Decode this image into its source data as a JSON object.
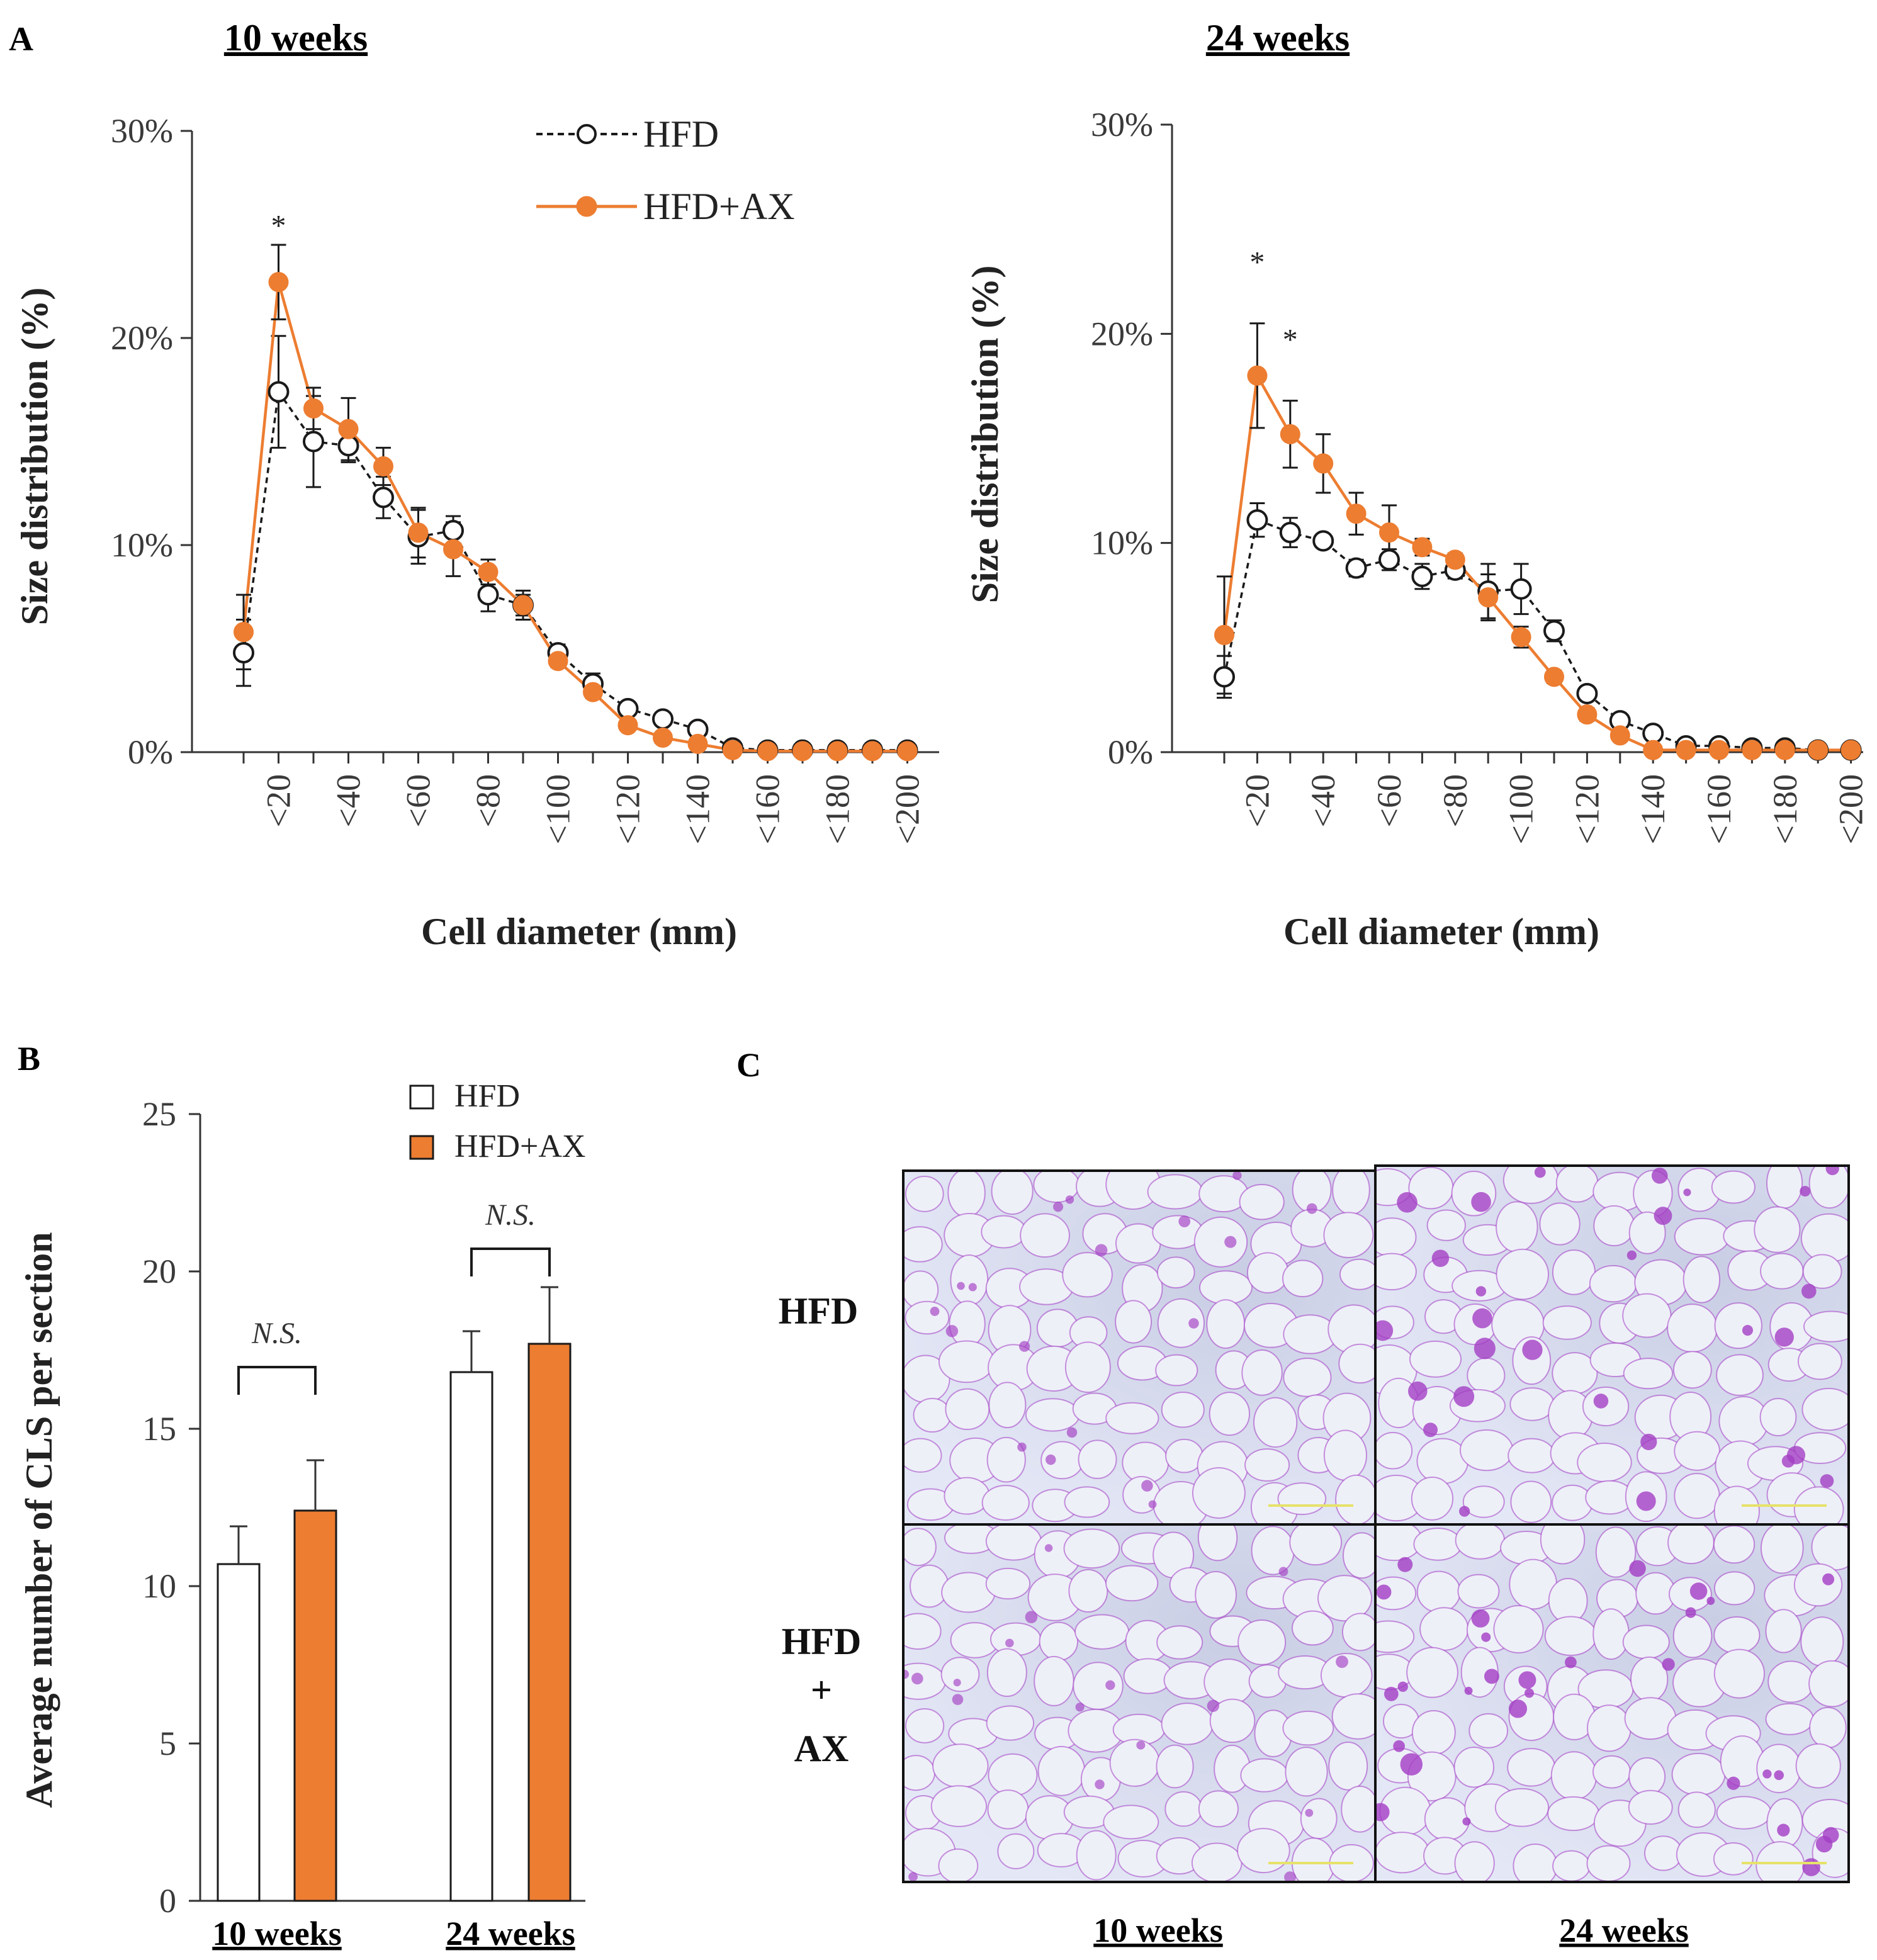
{
  "panels": {
    "A": {
      "letter": "A"
    },
    "B": {
      "letter": "B"
    },
    "C": {
      "letter": "C"
    }
  },
  "colors": {
    "hfd_fill": "#ffffff",
    "hfd_stroke": "#1a1a1a",
    "ax": "#ed7d31",
    "tissue_bg": "#dfe3f3",
    "stain": "#a33dc4"
  },
  "chart_data": [
    {
      "id": "A-10weeks",
      "type": "line",
      "title": "10 weeks",
      "xlabel": "Cell diameter (mm)",
      "ylabel": "Size distribution (%)",
      "ylim": [
        0,
        30
      ],
      "yticks": [
        "0%",
        "10%",
        "20%",
        "30%"
      ],
      "xtick_labels": [
        "<20",
        "<40",
        "<60",
        "<80",
        "<100",
        "<120",
        "<140",
        "<160",
        "<180",
        "<200"
      ],
      "x": [
        10,
        20,
        30,
        40,
        50,
        60,
        70,
        80,
        90,
        100,
        110,
        120,
        130,
        140,
        150,
        160,
        170,
        180,
        190,
        200
      ],
      "series": [
        {
          "name": "HFD",
          "style": "dashed-open",
          "values": [
            4.8,
            17.4,
            15.0,
            14.8,
            12.3,
            10.4,
            10.7,
            7.6,
            7.1,
            4.8,
            3.3,
            2.1,
            1.6,
            1.1,
            0.2,
            0.1,
            0.1,
            0.1,
            0.1,
            0.1
          ],
          "errors": [
            1.6,
            2.7,
            2.2,
            0.8,
            1.0,
            1.3,
            0.7,
            0.8,
            0.5,
            0.4,
            0.5,
            0.2,
            0.2,
            0.1,
            0.1,
            0.1,
            0.1,
            0.1,
            0.1,
            0.1
          ]
        },
        {
          "name": "HFD+AX",
          "style": "solid-filled",
          "values": [
            5.8,
            22.7,
            16.6,
            15.6,
            13.8,
            10.6,
            9.8,
            8.7,
            7.1,
            4.4,
            2.9,
            1.3,
            0.7,
            0.4,
            0.1,
            0.05,
            0.05,
            0.05,
            0.05,
            0.05
          ],
          "errors": [
            1.8,
            1.8,
            1.0,
            1.5,
            0.9,
            1.2,
            1.3,
            0.6,
            0.7,
            0.3,
            0.3,
            0.2,
            0.2,
            0.1,
            0.1,
            0.05,
            0.05,
            0.05,
            0.05,
            0.05
          ]
        }
      ],
      "annotations": [
        {
          "text": "*",
          "x": 20,
          "y": 25.7
        }
      ],
      "legend": {
        "position": "top-right",
        "items": [
          "HFD",
          "HFD+AX"
        ]
      }
    },
    {
      "id": "A-24weeks",
      "type": "line",
      "title": "24 weeks",
      "xlabel": "Cell diameter (mm)",
      "ylabel": "Size distribution (%)",
      "ylim": [
        0,
        30
      ],
      "yticks": [
        "0%",
        "10%",
        "20%",
        "30%"
      ],
      "xtick_labels": [
        "<20",
        "<40",
        "<60",
        "<80",
        "<100",
        "<120",
        "<140",
        "<160",
        "<180",
        "<200"
      ],
      "x": [
        10,
        20,
        30,
        40,
        50,
        60,
        70,
        80,
        90,
        100,
        110,
        120,
        130,
        140,
        150,
        160,
        170,
        180,
        190,
        200
      ],
      "series": [
        {
          "name": "HFD",
          "style": "dashed-open",
          "values": [
            3.6,
            11.1,
            10.5,
            10.1,
            8.8,
            9.2,
            8.4,
            8.7,
            7.7,
            7.8,
            5.8,
            2.8,
            1.5,
            0.9,
            0.3,
            0.3,
            0.2,
            0.2,
            0.1,
            0.1
          ],
          "errors": [
            1.0,
            0.8,
            0.7,
            0.3,
            0.4,
            0.5,
            0.6,
            0.4,
            1.3,
            1.2,
            0.5,
            0.2,
            0.2,
            0.1,
            0.1,
            0.1,
            0.1,
            0.1,
            0.1,
            0.1
          ]
        },
        {
          "name": "HFD+AX",
          "style": "solid-filled",
          "values": [
            5.6,
            18.0,
            15.2,
            13.8,
            11.4,
            10.5,
            9.8,
            9.2,
            7.4,
            5.5,
            3.6,
            1.8,
            0.8,
            0.1,
            0.1,
            0.1,
            0.1,
            0.1,
            0.1,
            0.1
          ],
          "errors": [
            2.8,
            2.5,
            1.6,
            1.4,
            1.0,
            1.3,
            0.4,
            0.3,
            1.1,
            0.5,
            0.3,
            0.3,
            0.2,
            0.1,
            0.1,
            0.1,
            0.1,
            0.1,
            0.1,
            0.1
          ]
        }
      ],
      "annotations": [
        {
          "text": "*",
          "x": 20,
          "y": 23.7
        },
        {
          "text": "*",
          "x": 30,
          "y": 20.0
        }
      ]
    },
    {
      "id": "B",
      "type": "bar",
      "ylabel": "Average number of CLS per  section",
      "ylim": [
        0,
        25
      ],
      "yticks": [
        "0",
        "5",
        "10",
        "15",
        "20",
        "25"
      ],
      "categories": [
        "10 weeks",
        "24 weeks"
      ],
      "series": [
        {
          "name": "HFD",
          "values": [
            10.7,
            16.8
          ],
          "errors": [
            1.2,
            1.3
          ]
        },
        {
          "name": "HFD+AX",
          "values": [
            12.4,
            17.7
          ],
          "errors": [
            1.6,
            1.8
          ]
        }
      ],
      "annotations": [
        "N.S.",
        "N.S."
      ],
      "legend": {
        "position": "top-right",
        "items": [
          "HFD",
          "HFD+AX"
        ]
      }
    }
  ],
  "panelC": {
    "rows": [
      "HFD",
      "HFD\n+\nAX"
    ],
    "row_labels": {
      "hfd": "HFD",
      "ax_line1": "HFD",
      "ax_line2": "+",
      "ax_line3": "AX"
    },
    "cols": [
      "10 weeks",
      "24 weeks"
    ]
  }
}
